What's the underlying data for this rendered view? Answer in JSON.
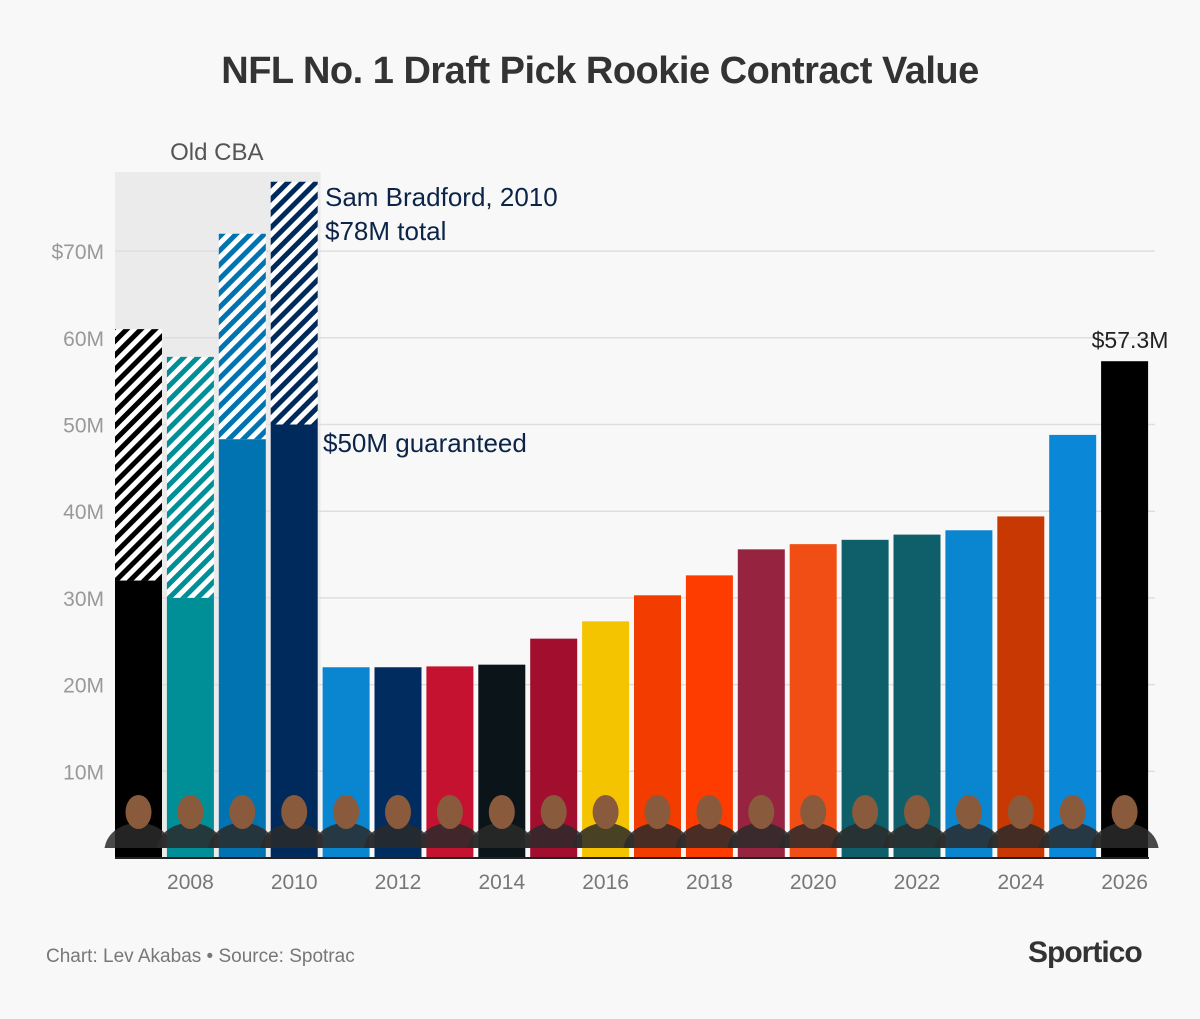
{
  "chart_data": {
    "type": "bar",
    "title": "NFL No. 1 Draft Pick Rookie Contract Value",
    "xlabel": "",
    "ylabel": "",
    "ylim": [
      0,
      80
    ],
    "y_ticks": [
      10,
      20,
      30,
      40,
      50,
      60,
      70
    ],
    "y_tick_labels": [
      "10M",
      "20M",
      "30M",
      "40M",
      "50M",
      "60M",
      "$70M"
    ],
    "x_tick_labels": [
      "2008",
      "2010",
      "2012",
      "2014",
      "2016",
      "2018",
      "2020",
      "2022",
      "2024",
      "2026"
    ],
    "grid": true,
    "categories": [
      2007,
      2008,
      2009,
      2010,
      2011,
      2012,
      2013,
      2014,
      2015,
      2016,
      2017,
      2018,
      2019,
      2020,
      2021,
      2022,
      2023,
      2024,
      2025,
      2026
    ],
    "series": [
      {
        "name": "guaranteed",
        "values": [
          32,
          30,
          48.3,
          50,
          22,
          22,
          22.1,
          22.3,
          25.3,
          27.3,
          30.3,
          32.6,
          35.6,
          36.2,
          36.7,
          37.3,
          37.8,
          39.4,
          48.8,
          57.3
        ]
      },
      {
        "name": "total",
        "values": [
          61,
          57.8,
          72,
          78,
          22,
          22,
          22.1,
          22.3,
          25.3,
          27.3,
          30.3,
          32.6,
          35.6,
          36.2,
          36.7,
          37.3,
          37.8,
          39.4,
          48.8,
          57.3
        ]
      }
    ],
    "colors": [
      "#000000",
      "#008e97",
      "#0073b0",
      "#002a5c",
      "#0a85d0",
      "#002c5f",
      "#c41230",
      "#0b1519",
      "#a10e2e",
      "#f5c400",
      "#f23c00",
      "#ff3c00",
      "#96233f",
      "#f04e14",
      "#0e5f6a",
      "#0e5f6a",
      "#0a85d0",
      "#c83803",
      "#0a87d6",
      "#000000"
    ],
    "annotations": {
      "region_label": "Old CBA",
      "bradford_line1": "Sam Bradford, 2010",
      "bradford_line2": "$78M total",
      "bradford_guaranteed": "$50M guaranteed",
      "last_value": "$57.3M"
    },
    "region_color": "#ebebeb",
    "annotation_color": "#0b2447"
  },
  "footer": {
    "credit": "Chart: Lev Akabas • Source: Spotrac",
    "logo": "Sportico"
  }
}
